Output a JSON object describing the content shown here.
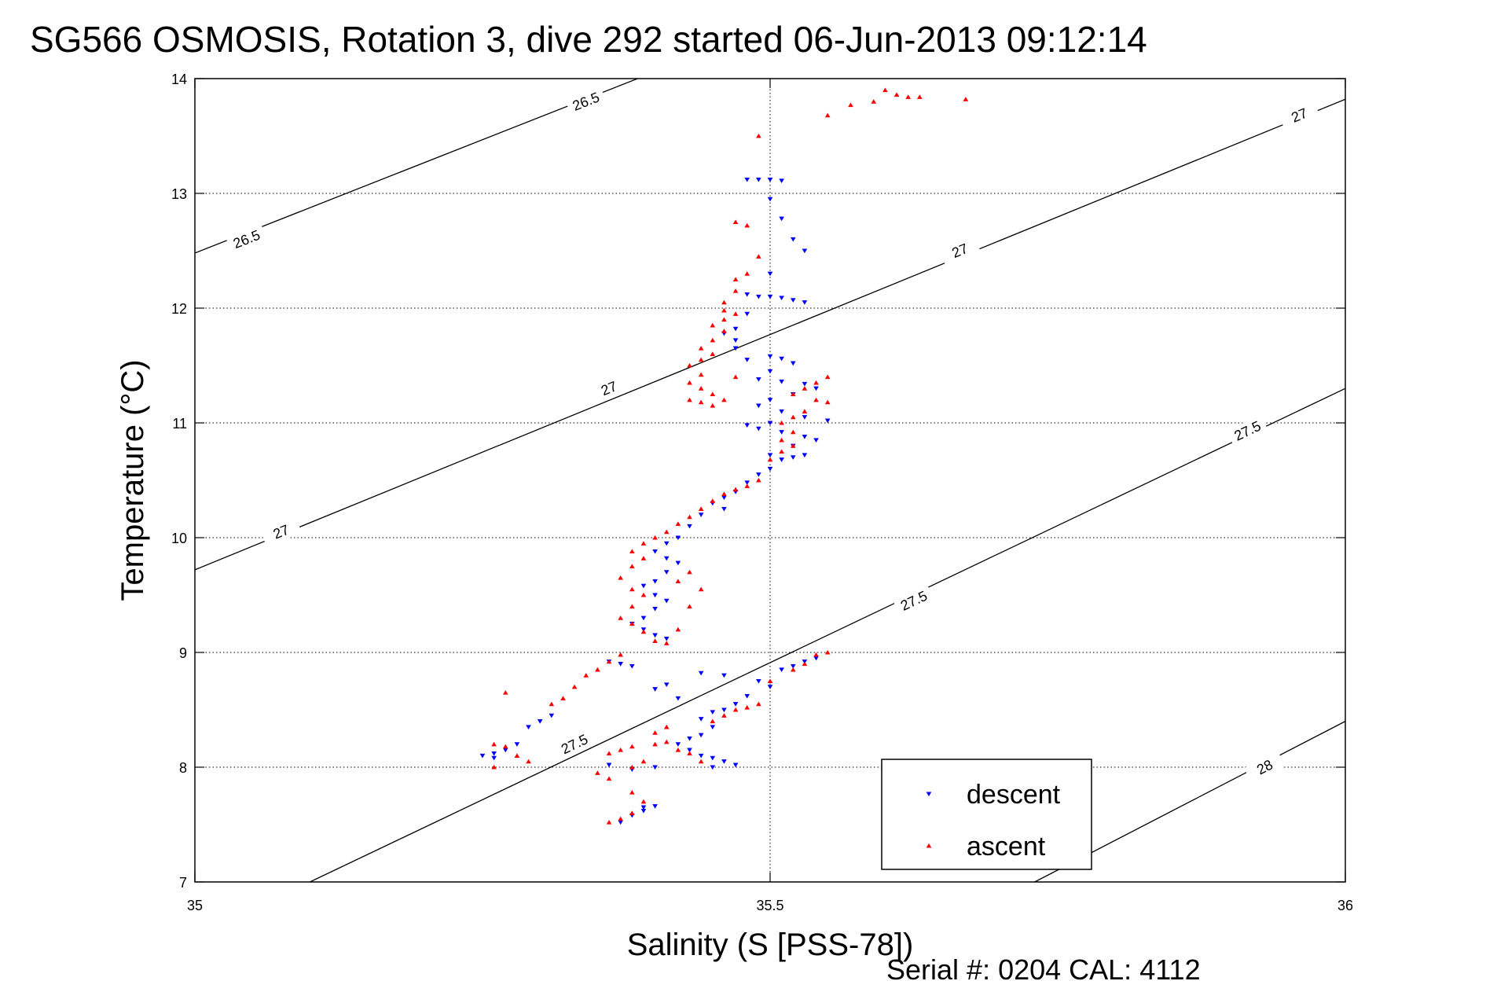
{
  "chart_data": {
    "type": "scatter",
    "title": "SG566 OSMOSIS, Rotation 3, dive 292 started 06-Jun-2013 09:12:14",
    "xlabel": "Salinity (S [PSS-78])",
    "ylabel": "Temperature (°C)",
    "xlim": [
      35,
      36
    ],
    "ylim": [
      7,
      14
    ],
    "xticks": [
      35,
      35.5,
      36
    ],
    "xtick_labels": [
      "35",
      "35.5",
      "36"
    ],
    "yticks": [
      7,
      8,
      9,
      10,
      11,
      12,
      13,
      14
    ],
    "ytick_labels": [
      "7",
      "8",
      "9",
      "10",
      "11",
      "12",
      "13",
      "14"
    ],
    "grid": true,
    "legend_position": "bottom-right",
    "footer": "Serial #: 0204  CAL: 4112",
    "isopycnals": [
      {
        "level": 26.5,
        "label": "26.5",
        "points": [
          [
            35.0,
            12.48
          ],
          [
            35.4,
            14.06
          ]
        ],
        "label_positions": [
          [
            35.045,
            12.6
          ],
          [
            35.34,
            13.8
          ]
        ]
      },
      {
        "level": 27.0,
        "label": "27",
        "points": [
          [
            35.0,
            9.72
          ],
          [
            36.0,
            13.82
          ]
        ],
        "label_positions": [
          [
            35.075,
            10.05
          ],
          [
            35.36,
            11.3
          ],
          [
            35.665,
            12.5
          ],
          [
            35.96,
            13.68
          ]
        ]
      },
      {
        "level": 27.5,
        "label": "27.5",
        "points": [
          [
            35.1,
            7.0
          ],
          [
            36.0,
            11.3
          ]
        ],
        "label_positions": [
          [
            35.33,
            8.2
          ],
          [
            35.625,
            9.45
          ],
          [
            35.915,
            10.93
          ]
        ]
      },
      {
        "level": 28.0,
        "label": "28",
        "points": [
          [
            35.73,
            7.0
          ],
          [
            36.0,
            8.4
          ]
        ],
        "label_positions": [
          [
            35.93,
            8.0
          ]
        ]
      }
    ],
    "series": [
      {
        "name": "descent",
        "color": "#0000ff",
        "marker": "triangle-down",
        "points": [
          [
            35.48,
            13.12
          ],
          [
            35.49,
            13.12
          ],
          [
            35.5,
            13.12
          ],
          [
            35.51,
            13.11
          ],
          [
            35.5,
            12.95
          ],
          [
            35.51,
            12.78
          ],
          [
            35.52,
            12.6
          ],
          [
            35.53,
            12.5
          ],
          [
            35.5,
            12.3
          ],
          [
            35.48,
            12.12
          ],
          [
            35.49,
            12.1
          ],
          [
            35.5,
            12.1
          ],
          [
            35.51,
            12.09
          ],
          [
            35.52,
            12.07
          ],
          [
            35.53,
            12.05
          ],
          [
            35.48,
            11.95
          ],
          [
            35.47,
            11.82
          ],
          [
            35.46,
            11.78
          ],
          [
            35.47,
            11.72
          ],
          [
            35.47,
            11.65
          ],
          [
            35.48,
            11.55
          ],
          [
            35.5,
            11.58
          ],
          [
            35.51,
            11.56
          ],
          [
            35.52,
            11.52
          ],
          [
            35.5,
            11.45
          ],
          [
            35.49,
            11.38
          ],
          [
            35.51,
            11.36
          ],
          [
            35.53,
            11.34
          ],
          [
            35.54,
            11.3
          ],
          [
            35.52,
            11.25
          ],
          [
            35.5,
            11.2
          ],
          [
            35.49,
            11.15
          ],
          [
            35.51,
            11.1
          ],
          [
            35.53,
            11.05
          ],
          [
            35.55,
            11.02
          ],
          [
            35.5,
            11.0
          ],
          [
            35.48,
            10.98
          ],
          [
            35.49,
            10.95
          ],
          [
            35.51,
            10.92
          ],
          [
            35.53,
            10.88
          ],
          [
            35.54,
            10.85
          ],
          [
            35.52,
            10.8
          ],
          [
            35.5,
            10.72
          ],
          [
            35.51,
            10.68
          ],
          [
            35.52,
            10.7
          ],
          [
            35.53,
            10.72
          ],
          [
            35.5,
            10.6
          ],
          [
            35.49,
            10.55
          ],
          [
            35.48,
            10.48
          ],
          [
            35.47,
            10.4
          ],
          [
            35.46,
            10.35
          ],
          [
            35.45,
            10.3
          ],
          [
            35.46,
            10.25
          ],
          [
            35.44,
            10.2
          ],
          [
            35.43,
            10.1
          ],
          [
            35.42,
            10.0
          ],
          [
            35.41,
            9.95
          ],
          [
            35.4,
            9.88
          ],
          [
            35.41,
            9.82
          ],
          [
            35.42,
            9.78
          ],
          [
            35.41,
            9.7
          ],
          [
            35.4,
            9.62
          ],
          [
            35.39,
            9.58
          ],
          [
            35.4,
            9.5
          ],
          [
            35.41,
            9.45
          ],
          [
            35.4,
            9.38
          ],
          [
            35.39,
            9.3
          ],
          [
            35.38,
            9.25
          ],
          [
            35.39,
            9.2
          ],
          [
            35.4,
            9.15
          ],
          [
            35.41,
            9.12
          ],
          [
            35.36,
            8.92
          ],
          [
            35.37,
            8.9
          ],
          [
            35.38,
            8.88
          ],
          [
            35.44,
            8.82
          ],
          [
            35.46,
            8.8
          ],
          [
            35.49,
            8.75
          ],
          [
            35.5,
            8.7
          ],
          [
            35.48,
            8.62
          ],
          [
            35.47,
            8.55
          ],
          [
            35.46,
            8.5
          ],
          [
            35.45,
            8.48
          ],
          [
            35.44,
            8.42
          ],
          [
            35.45,
            8.35
          ],
          [
            35.44,
            8.28
          ],
          [
            35.43,
            8.25
          ],
          [
            35.42,
            8.2
          ],
          [
            35.43,
            8.15
          ],
          [
            35.44,
            8.1
          ],
          [
            35.45,
            8.08
          ],
          [
            35.46,
            8.05
          ],
          [
            35.47,
            8.02
          ],
          [
            35.45,
            8.0
          ],
          [
            35.36,
            8.02
          ],
          [
            35.38,
            7.98
          ],
          [
            35.4,
            8.0
          ],
          [
            35.39,
            7.65
          ],
          [
            35.38,
            7.58
          ],
          [
            35.37,
            7.52
          ],
          [
            35.39,
            7.62
          ],
          [
            35.4,
            7.66
          ],
          [
            35.25,
            8.1
          ],
          [
            35.26,
            8.12
          ],
          [
            35.27,
            8.15
          ],
          [
            35.26,
            8.08
          ],
          [
            35.28,
            8.2
          ],
          [
            35.29,
            8.35
          ],
          [
            35.3,
            8.4
          ],
          [
            35.31,
            8.45
          ],
          [
            35.52,
            8.88
          ],
          [
            35.53,
            8.92
          ],
          [
            35.54,
            8.95
          ],
          [
            35.51,
            8.85
          ],
          [
            35.4,
            8.68
          ],
          [
            35.41,
            8.72
          ],
          [
            35.42,
            8.6
          ]
        ]
      },
      {
        "name": "ascent",
        "color": "#ff0000",
        "marker": "triangle-up",
        "points": [
          [
            35.6,
            13.9
          ],
          [
            35.61,
            13.86
          ],
          [
            35.62,
            13.84
          ],
          [
            35.63,
            13.84
          ],
          [
            35.59,
            13.8
          ],
          [
            35.57,
            13.77
          ],
          [
            35.55,
            13.68
          ],
          [
            35.67,
            13.82
          ],
          [
            35.49,
            13.5
          ],
          [
            35.47,
            12.75
          ],
          [
            35.48,
            12.72
          ],
          [
            35.49,
            12.45
          ],
          [
            35.48,
            12.3
          ],
          [
            35.47,
            12.25
          ],
          [
            35.47,
            12.15
          ],
          [
            35.46,
            12.05
          ],
          [
            35.46,
            11.98
          ],
          [
            35.47,
            11.95
          ],
          [
            35.46,
            11.9
          ],
          [
            35.45,
            11.85
          ],
          [
            35.46,
            11.8
          ],
          [
            35.45,
            11.72
          ],
          [
            35.44,
            11.65
          ],
          [
            35.45,
            11.6
          ],
          [
            35.44,
            11.55
          ],
          [
            35.43,
            11.5
          ],
          [
            35.44,
            11.42
          ],
          [
            35.43,
            11.35
          ],
          [
            35.44,
            11.3
          ],
          [
            35.45,
            11.25
          ],
          [
            35.43,
            11.2
          ],
          [
            35.44,
            11.18
          ],
          [
            35.45,
            11.15
          ],
          [
            35.46,
            11.2
          ],
          [
            35.47,
            11.4
          ],
          [
            35.55,
            11.4
          ],
          [
            35.54,
            11.35
          ],
          [
            35.53,
            11.3
          ],
          [
            35.52,
            11.25
          ],
          [
            35.54,
            11.2
          ],
          [
            35.55,
            11.18
          ],
          [
            35.53,
            11.1
          ],
          [
            35.52,
            11.05
          ],
          [
            35.51,
            11.0
          ],
          [
            35.52,
            10.92
          ],
          [
            35.51,
            10.85
          ],
          [
            35.52,
            10.8
          ],
          [
            35.51,
            10.75
          ],
          [
            35.5,
            10.68
          ],
          [
            35.49,
            10.5
          ],
          [
            35.48,
            10.45
          ],
          [
            35.47,
            10.42
          ],
          [
            35.46,
            10.38
          ],
          [
            35.45,
            10.32
          ],
          [
            35.44,
            10.25
          ],
          [
            35.43,
            10.18
          ],
          [
            35.42,
            10.12
          ],
          [
            35.41,
            10.05
          ],
          [
            35.4,
            10.0
          ],
          [
            35.39,
            9.95
          ],
          [
            35.38,
            9.88
          ],
          [
            35.39,
            9.82
          ],
          [
            35.38,
            9.75
          ],
          [
            35.37,
            9.65
          ],
          [
            35.38,
            9.55
          ],
          [
            35.39,
            9.5
          ],
          [
            35.38,
            9.4
          ],
          [
            35.37,
            9.3
          ],
          [
            35.38,
            9.25
          ],
          [
            35.39,
            9.18
          ],
          [
            35.4,
            9.1
          ],
          [
            35.41,
            9.08
          ],
          [
            35.42,
            9.2
          ],
          [
            35.43,
            9.4
          ],
          [
            35.42,
            9.62
          ],
          [
            35.43,
            9.7
          ],
          [
            35.44,
            9.55
          ],
          [
            35.37,
            8.98
          ],
          [
            35.36,
            8.92
          ],
          [
            35.35,
            8.85
          ],
          [
            35.34,
            8.8
          ],
          [
            35.33,
            8.7
          ],
          [
            35.32,
            8.6
          ],
          [
            35.31,
            8.55
          ],
          [
            35.27,
            8.65
          ],
          [
            35.26,
            8.2
          ],
          [
            35.27,
            8.18
          ],
          [
            35.28,
            8.1
          ],
          [
            35.29,
            8.05
          ],
          [
            35.26,
            8.0
          ],
          [
            35.36,
            8.12
          ],
          [
            35.37,
            8.15
          ],
          [
            35.38,
            8.18
          ],
          [
            35.4,
            8.2
          ],
          [
            35.41,
            8.22
          ],
          [
            35.42,
            8.15
          ],
          [
            35.43,
            8.12
          ],
          [
            35.44,
            8.05
          ],
          [
            35.35,
            7.95
          ],
          [
            35.36,
            7.9
          ],
          [
            35.38,
            7.78
          ],
          [
            35.39,
            7.7
          ],
          [
            35.37,
            7.55
          ],
          [
            35.38,
            7.6
          ],
          [
            35.36,
            7.52
          ],
          [
            35.45,
            8.4
          ],
          [
            35.46,
            8.45
          ],
          [
            35.47,
            8.5
          ],
          [
            35.48,
            8.52
          ],
          [
            35.49,
            8.55
          ],
          [
            35.5,
            8.75
          ],
          [
            35.52,
            8.85
          ],
          [
            35.53,
            8.9
          ],
          [
            35.54,
            8.98
          ],
          [
            35.55,
            9.0
          ],
          [
            35.38,
            8.0
          ],
          [
            35.39,
            8.05
          ],
          [
            35.4,
            8.3
          ],
          [
            35.41,
            8.35
          ]
        ]
      }
    ]
  }
}
